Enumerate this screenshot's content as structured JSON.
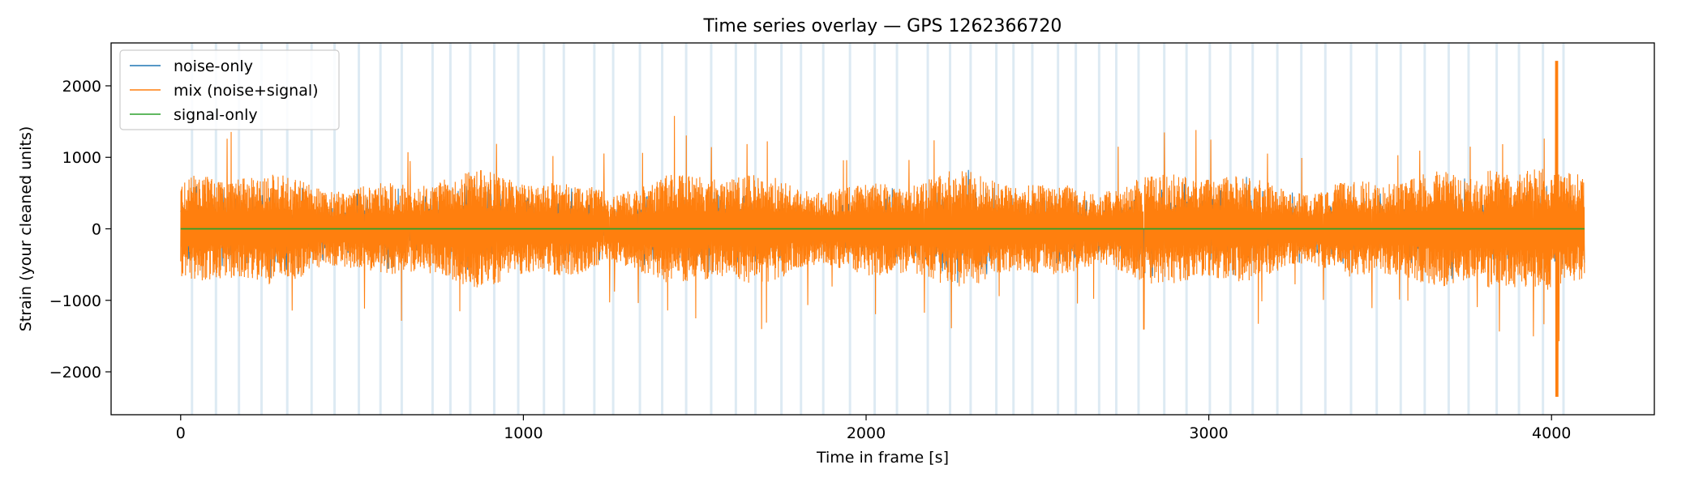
{
  "chart_data": {
    "type": "line",
    "title": "Time series overlay — GPS 1262366720",
    "xlabel": "Time in frame [s]",
    "ylabel": "Strain (your cleaned units)",
    "xlim": [
      -203,
      4300
    ],
    "ylim": [
      -2600,
      2600
    ],
    "xticks": [
      0,
      1000,
      2000,
      3000,
      4000
    ],
    "yticks": [
      -2000,
      -1000,
      0,
      1000,
      2000
    ],
    "xtick_labels": [
      "0",
      "1000",
      "2000",
      "3000",
      "4000"
    ],
    "ytick_labels": [
      "−2000",
      "−1000",
      "0",
      "1000",
      "2000"
    ],
    "legend_position": "top-left",
    "grid": false,
    "series": [
      {
        "name": "noise-only",
        "color": "#1f77b4",
        "duration": 4096,
        "amplitude_typical": 600
      },
      {
        "name": "mix (noise+signal)",
        "color": "#ff7f0e",
        "duration": 4096,
        "amplitude_typical": 600,
        "amplitude_peak_max": 2350,
        "amplitude_peak_min": -2350
      },
      {
        "name": "signal-only",
        "color": "#2ca02c",
        "duration": 4096,
        "value": 0
      }
    ],
    "shaded_bands": {
      "color": "#c6dceb",
      "times": [
        33,
        103,
        170,
        236,
        311,
        382,
        449,
        520,
        583,
        645,
        735,
        787,
        845,
        915,
        985,
        1060,
        1118,
        1207,
        1262,
        1340,
        1405,
        1475,
        1548,
        1620,
        1677,
        1753,
        1810,
        1875,
        1953,
        2025,
        2090,
        2180,
        2245,
        2305,
        2380,
        2430,
        2485,
        2560,
        2612,
        2680,
        2730,
        2795,
        2870,
        2935,
        3003,
        3063,
        3128,
        3200,
        3270,
        3340,
        3415,
        3490,
        3560,
        3630,
        3700,
        3758,
        3840,
        3905,
        3975,
        4035
      ]
    }
  }
}
